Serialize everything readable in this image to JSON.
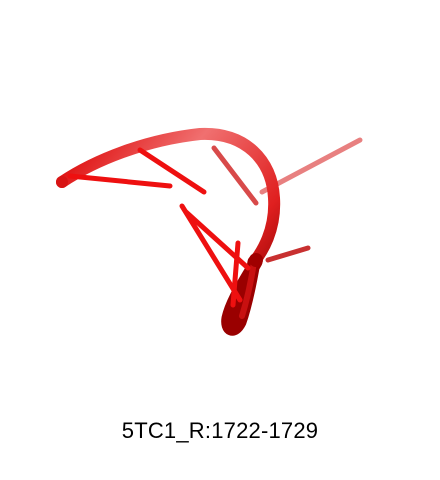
{
  "caption": "5TC1_R:1722-1729",
  "colors": {
    "background": "#ffffff",
    "backbone_light": "#f07070",
    "backbone": "#e01818",
    "backbone_dark": "#8e0000",
    "base": "#ee1010",
    "base_faded": "#e86a6a"
  }
}
